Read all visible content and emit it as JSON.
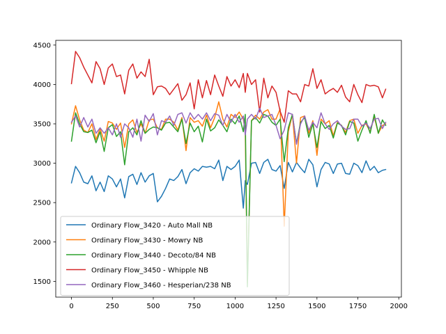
{
  "chart_data": {
    "type": "line",
    "title": "",
    "xlabel": "",
    "ylabel": "",
    "xlim": [
      -96,
      2016
    ],
    "ylim": [
      1300,
      4560
    ],
    "xticks": [
      0,
      250,
      500,
      750,
      1000,
      1250,
      1500,
      1750,
      2000
    ],
    "yticks": [
      1500,
      2000,
      2500,
      3000,
      3500,
      4000,
      4500
    ],
    "grid": false,
    "legend_position": "lower-left",
    "series": [
      {
        "name": "Ordinary Flow_3420 - Auto Mall NB",
        "color": "#1f77b4",
        "x": [
          0,
          25,
          50,
          75,
          100,
          125,
          150,
          175,
          200,
          225,
          250,
          275,
          300,
          325,
          350,
          375,
          400,
          425,
          450,
          475,
          500,
          525,
          550,
          575,
          600,
          625,
          650,
          675,
          700,
          725,
          750,
          775,
          800,
          825,
          850,
          875,
          900,
          925,
          950,
          975,
          1000,
          1025,
          1050,
          1062,
          1075,
          1100,
          1125,
          1150,
          1175,
          1200,
          1225,
          1250,
          1275,
          1300,
          1325,
          1350,
          1375,
          1400,
          1425,
          1450,
          1475,
          1500,
          1525,
          1550,
          1575,
          1600,
          1625,
          1650,
          1675,
          1700,
          1725,
          1750,
          1775,
          1800,
          1825,
          1850,
          1875,
          1900,
          1920
        ],
        "y": [
          2750,
          2960,
          2880,
          2760,
          2740,
          2840,
          2650,
          2760,
          2640,
          2840,
          2800,
          2700,
          2800,
          2560,
          2830,
          2860,
          2730,
          2880,
          2760,
          2840,
          2870,
          2510,
          2580,
          2680,
          2800,
          2780,
          2830,
          2920,
          2740,
          2880,
          2930,
          2900,
          2960,
          2950,
          2960,
          2930,
          3040,
          2780,
          2960,
          2920,
          2960,
          3040,
          2430,
          2780,
          2730,
          3000,
          3010,
          2870,
          3010,
          3050,
          2920,
          2900,
          2970,
          2680,
          3010,
          2890,
          3010,
          2940,
          2880,
          3050,
          2980,
          2700,
          2920,
          3010,
          2990,
          2870,
          2990,
          3000,
          2870,
          2860,
          3000,
          2970,
          2880,
          3030,
          2910,
          2960,
          2880,
          2910,
          2920
        ]
      },
      {
        "name": "Ordinary Flow_3430 - Mowry NB",
        "color": "#ff7f0e",
        "x": [
          0,
          25,
          50,
          75,
          100,
          125,
          150,
          175,
          200,
          225,
          250,
          275,
          300,
          325,
          350,
          375,
          400,
          425,
          450,
          475,
          500,
          525,
          550,
          575,
          600,
          625,
          650,
          675,
          700,
          725,
          750,
          775,
          800,
          825,
          850,
          875,
          900,
          925,
          950,
          975,
          1000,
          1025,
          1050,
          1062,
          1075,
          1100,
          1125,
          1150,
          1175,
          1200,
          1225,
          1250,
          1275,
          1300,
          1325,
          1350,
          1375,
          1400,
          1425,
          1450,
          1475,
          1500,
          1525,
          1550,
          1575,
          1600,
          1625,
          1650,
          1675,
          1700,
          1725,
          1750,
          1775,
          1800,
          1825,
          1850,
          1875,
          1900,
          1920
        ],
        "y": [
          3500,
          3730,
          3550,
          3420,
          3390,
          3500,
          3300,
          3440,
          3280,
          3530,
          3510,
          3430,
          3510,
          3200,
          3500,
          3550,
          3390,
          3500,
          3380,
          3550,
          3560,
          3450,
          3430,
          3560,
          3560,
          3520,
          3420,
          3580,
          3160,
          3580,
          3520,
          3540,
          3470,
          3610,
          3450,
          3580,
          3780,
          3560,
          3460,
          3620,
          3580,
          3650,
          3560,
          3400,
          1480,
          3540,
          3610,
          3560,
          3650,
          3680,
          3560,
          3560,
          3690,
          2200,
          3400,
          3620,
          3000,
          3580,
          3600,
          3380,
          3540,
          3100,
          3560,
          3500,
          3540,
          3350,
          3520,
          3480,
          3390,
          3540,
          3560,
          3380,
          3480,
          3500,
          3400,
          3590,
          3380,
          3480,
          3500
        ]
      },
      {
        "name": "Ordinary Flow_3440 - Decoto/84 NB",
        "color": "#2ca02c",
        "x": [
          0,
          25,
          50,
          75,
          100,
          125,
          150,
          175,
          200,
          225,
          250,
          275,
          300,
          325,
          350,
          375,
          400,
          425,
          450,
          475,
          500,
          525,
          550,
          575,
          600,
          625,
          650,
          675,
          700,
          725,
          750,
          775,
          800,
          825,
          850,
          875,
          900,
          925,
          950,
          975,
          1000,
          1025,
          1050,
          1062,
          1075,
          1100,
          1125,
          1150,
          1175,
          1200,
          1225,
          1250,
          1275,
          1300,
          1325,
          1350,
          1375,
          1400,
          1425,
          1450,
          1475,
          1500,
          1525,
          1550,
          1575,
          1600,
          1625,
          1650,
          1675,
          1700,
          1725,
          1750,
          1775,
          1800,
          1825,
          1850,
          1875,
          1900,
          1920
        ],
        "y": [
          3280,
          3640,
          3500,
          3400,
          3390,
          3420,
          3260,
          3400,
          3150,
          3450,
          3490,
          3340,
          3400,
          2980,
          3400,
          3450,
          3360,
          3540,
          3380,
          3430,
          3460,
          3450,
          3420,
          3510,
          3520,
          3460,
          3400,
          3560,
          3250,
          3510,
          3400,
          3470,
          3270,
          3560,
          3410,
          3450,
          3550,
          3480,
          3400,
          3560,
          3500,
          3600,
          3400,
          3620,
          1430,
          3540,
          3580,
          3510,
          3620,
          3600,
          3520,
          3480,
          3560,
          3020,
          3450,
          3620,
          3250,
          3520,
          3580,
          3330,
          3500,
          3200,
          3530,
          3440,
          3480,
          3320,
          3510,
          3480,
          3360,
          3530,
          3510,
          3280,
          3420,
          3540,
          3380,
          3620,
          3380,
          3550,
          3480
        ]
      },
      {
        "name": "Ordinary Flow_3450 - Whipple NB",
        "color": "#d62728",
        "x": [
          0,
          25,
          50,
          75,
          100,
          125,
          150,
          175,
          200,
          225,
          250,
          275,
          300,
          325,
          350,
          375,
          400,
          425,
          450,
          475,
          500,
          525,
          550,
          575,
          600,
          625,
          650,
          675,
          700,
          725,
          750,
          775,
          800,
          825,
          850,
          875,
          900,
          925,
          950,
          975,
          1000,
          1025,
          1050,
          1062,
          1075,
          1100,
          1125,
          1150,
          1175,
          1200,
          1225,
          1250,
          1275,
          1300,
          1325,
          1350,
          1375,
          1400,
          1425,
          1450,
          1475,
          1500,
          1525,
          1550,
          1575,
          1600,
          1625,
          1650,
          1675,
          1700,
          1725,
          1750,
          1775,
          1800,
          1825,
          1850,
          1875,
          1900,
          1920
        ],
        "y": [
          4010,
          4420,
          4340,
          4220,
          4120,
          4020,
          4290,
          4200,
          4000,
          4210,
          4260,
          4100,
          4120,
          3880,
          4180,
          4260,
          4080,
          4160,
          4100,
          4320,
          3870,
          3970,
          3980,
          3950,
          3870,
          3940,
          4010,
          3800,
          3870,
          4020,
          3690,
          4060,
          3830,
          4050,
          3870,
          4120,
          3980,
          3850,
          4100,
          3980,
          4060,
          3960,
          4140,
          3900,
          4140,
          4000,
          4060,
          3650,
          4080,
          3830,
          3980,
          3900,
          3660,
          3520,
          3920,
          3880,
          3880,
          3780,
          4000,
          3980,
          4200,
          3950,
          4060,
          3880,
          3920,
          3950,
          3900,
          3990,
          3840,
          3780,
          4000,
          3870,
          3770,
          4000,
          3980,
          3990,
          3970,
          3830,
          3940
        ]
      },
      {
        "name": "Ordinary Flow_3460 - Hesperian/238 NB",
        "color": "#9467bd",
        "x": [
          0,
          25,
          50,
          75,
          100,
          125,
          150,
          175,
          200,
          225,
          250,
          275,
          300,
          325,
          350,
          375,
          400,
          425,
          450,
          475,
          500,
          525,
          550,
          575,
          600,
          625,
          650,
          675,
          700,
          725,
          750,
          775,
          800,
          825,
          850,
          875,
          900,
          925,
          950,
          975,
          1000,
          1025,
          1050,
          1062,
          1075,
          1100,
          1125,
          1150,
          1175,
          1200,
          1225,
          1250,
          1275,
          1300,
          1325,
          1350,
          1375,
          1400,
          1425,
          1450,
          1475,
          1500,
          1525,
          1550,
          1575,
          1600,
          1625,
          1650,
          1675,
          1700,
          1725,
          1750,
          1775,
          1800,
          1825,
          1850,
          1875,
          1900,
          1920
        ],
        "y": [
          3520,
          3600,
          3460,
          3580,
          3460,
          3560,
          3380,
          3450,
          3380,
          3450,
          3360,
          3500,
          3330,
          3500,
          3450,
          3330,
          3560,
          3280,
          3610,
          3530,
          3630,
          3360,
          3540,
          3520,
          3600,
          3480,
          3620,
          3640,
          3510,
          3640,
          3560,
          3620,
          3560,
          3640,
          3540,
          3630,
          3610,
          3480,
          3620,
          3520,
          3620,
          3520,
          3600,
          3360,
          3560,
          3620,
          3560,
          3700,
          3580,
          3600,
          3620,
          3480,
          3310,
          3420,
          3640,
          3620,
          3240,
          3500,
          3600,
          3420,
          3520,
          3450,
          3640,
          3500,
          3430,
          3500,
          3540,
          3470,
          3430,
          3440,
          3560,
          3560,
          3470,
          3510,
          3440,
          3560,
          3570,
          3440,
          3520
        ]
      }
    ]
  }
}
